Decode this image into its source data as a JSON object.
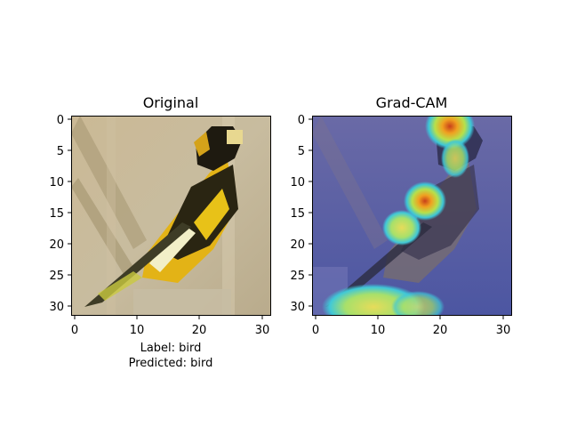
{
  "panels": [
    {
      "title": "Original",
      "xticks": [
        "0",
        "10",
        "20",
        "30"
      ],
      "yticks": [
        "0",
        "5",
        "10",
        "15",
        "20",
        "25",
        "30"
      ],
      "image": "cifar-bird-32x32"
    },
    {
      "title": "Grad-CAM",
      "xticks": [
        "0",
        "10",
        "20",
        "30"
      ],
      "yticks": [
        "0",
        "5",
        "10",
        "15",
        "20",
        "25",
        "30"
      ],
      "image": "bird-with-gradcam-heatmap-overlay"
    }
  ],
  "caption": {
    "label": "Label: bird",
    "predicted": "Predicted: bird"
  },
  "colors": {
    "bg_tan": "#c2b496",
    "bird_yellow": "#e7b81a",
    "bird_black": "#1c1a12",
    "overlay_blue": "#575f9e",
    "hot_red": "#d24a10",
    "warm_yellow": "#e8d24a",
    "cyan_glow": "#58d2c4"
  }
}
